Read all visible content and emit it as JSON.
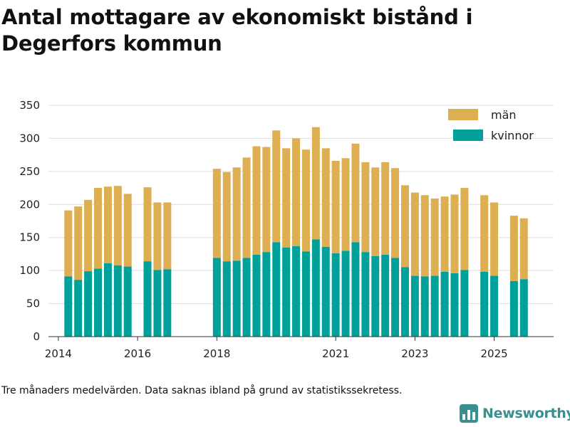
{
  "title": "Antal mottagare av ekonomiskt bistånd i Degerfors kommun",
  "footnote": "Tre månaders medelvärden. Data saknas ibland på grund av statistikssekretess.",
  "brand": {
    "name": "Newsworthy",
    "icon": "bar-chart-logo-icon"
  },
  "colors": {
    "kvinnor": "#00a19a",
    "man": "#ddae52",
    "grid": "#dddddd",
    "axis": "#333333",
    "brand": "#3a8f8f"
  },
  "chart_data": {
    "type": "bar",
    "stacked": true,
    "title": "Antal mottagare av ekonomiskt bistånd i Degerfors kommun",
    "xlabel": "",
    "ylabel": "",
    "ylim": [
      0,
      350
    ],
    "yticks": [
      0,
      50,
      100,
      150,
      200,
      250,
      300,
      350
    ],
    "xlim": [
      2013.75,
      2026.5
    ],
    "xticks": [
      {
        "value": 2014,
        "label": "2014"
      },
      {
        "value": 2016,
        "label": "2016"
      },
      {
        "value": 2018,
        "label": "2018"
      },
      {
        "value": 2021,
        "label": "2021"
      },
      {
        "value": 2023,
        "label": "2023"
      },
      {
        "value": 2025,
        "label": "2025"
      }
    ],
    "legend": {
      "position": "top-right",
      "entries": [
        "män",
        "kvinnor"
      ]
    },
    "x": [
      2014.25,
      2014.5,
      2014.75,
      2015.0,
      2015.25,
      2015.5,
      2015.75,
      2016.25,
      2016.5,
      2016.75,
      2018.0,
      2018.25,
      2018.5,
      2018.75,
      2019.0,
      2019.25,
      2019.5,
      2019.75,
      2020.0,
      2020.25,
      2020.5,
      2020.75,
      2021.0,
      2021.25,
      2021.5,
      2021.75,
      2022.0,
      2022.25,
      2022.5,
      2022.75,
      2023.0,
      2023.25,
      2023.5,
      2023.75,
      2024.0,
      2024.25,
      2024.75,
      2025.0,
      2025.5,
      2025.75
    ],
    "series": [
      {
        "name": "kvinnor",
        "values": [
          91,
          86,
          99,
          103,
          111,
          108,
          106,
          114,
          101,
          102,
          119,
          114,
          115,
          119,
          124,
          128,
          143,
          135,
          137,
          129,
          147,
          136,
          126,
          130,
          143,
          128,
          122,
          124,
          119,
          105,
          92,
          91,
          92,
          98,
          96,
          101,
          98,
          92,
          84,
          87
        ]
      },
      {
        "name": "män",
        "values": [
          100,
          111,
          108,
          122,
          116,
          120,
          110,
          112,
          102,
          101,
          135,
          135,
          141,
          152,
          164,
          159,
          169,
          150,
          163,
          154,
          170,
          149,
          140,
          140,
          149,
          136,
          134,
          140,
          136,
          124,
          126,
          123,
          117,
          114,
          119,
          124,
          116,
          111,
          99,
          92
        ]
      }
    ]
  }
}
